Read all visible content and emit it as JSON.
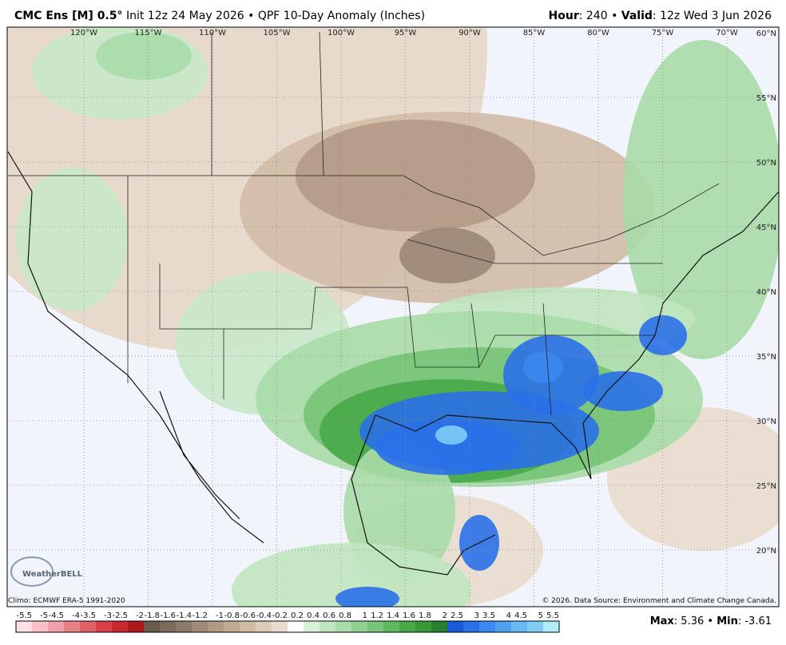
{
  "header": {
    "left": [
      {
        "text": "CMC Ens [M] 0.5°",
        "bold": true
      },
      {
        "text": " Init 12z 24 May 2026 • QPF 10-Day Anomaly (Inches)",
        "bold": false
      }
    ],
    "right": [
      {
        "text": "Hour",
        "bold": true
      },
      {
        "text": ": 240 • ",
        "bold": false
      },
      {
        "text": "Valid",
        "bold": true
      },
      {
        "text": ": 12z Wed 3 Jun 2026",
        "bold": false
      }
    ]
  },
  "map": {
    "longitudes": [
      "120°W",
      "115°W",
      "110°W",
      "105°W",
      "100°W",
      "95°W",
      "90°W",
      "85°W",
      "80°W",
      "75°W",
      "70°W"
    ],
    "latitudes": [
      "60°N",
      "55°N",
      "50°N",
      "45°N",
      "40°N",
      "35°N",
      "30°N",
      "25°N",
      "20°N"
    ],
    "climo": "Climo: ECMWF ERA-5 1991-2020",
    "copyright": "© 2026. Data Source: Environment and Climate Change Canada.",
    "logo": "WeatherBELL"
  },
  "colorbar": {
    "labels": [
      -5.5,
      -5,
      -4.5,
      -4,
      -3.5,
      -3,
      -2.5,
      -2,
      -1.8,
      -1.6,
      -1.4,
      -1.2,
      -1,
      -0.8,
      -0.6,
      -0.4,
      -0.2,
      0.2,
      0.4,
      0.6,
      0.8,
      1,
      1.2,
      1.4,
      1.6,
      1.8,
      2,
      2.5,
      3,
      3.5,
      4,
      4.5,
      5,
      5.5
    ],
    "colors": [
      "#fde0e4",
      "#f8c0c8",
      "#f0a0a8",
      "#e88088",
      "#e06068",
      "#d84048",
      "#c82830",
      "#b01820",
      "#6b5a4e",
      "#7d6a5c",
      "#8e7a6a",
      "#a08a78",
      "#b09a86",
      "#c0aa94",
      "#cfbaa4",
      "#dccab6",
      "#e8dccc",
      "#ffffff",
      "#d8f0d8",
      "#c0e6c0",
      "#a8dca8",
      "#90d090",
      "#78c478",
      "#60b860",
      "#48a848",
      "#389838",
      "#2a8030",
      "#1a5ad8",
      "#2a70e8",
      "#3a88f0",
      "#50a0f0",
      "#68b8f4",
      "#80ccf6",
      "#b0ecf8"
    ]
  },
  "stats": [
    {
      "text": "Max",
      "bold": true
    },
    {
      "text": ": 5.36 • ",
      "bold": false
    },
    {
      "text": "Min",
      "bold": true
    },
    {
      "text": ": -3.61",
      "bold": false
    }
  ]
}
